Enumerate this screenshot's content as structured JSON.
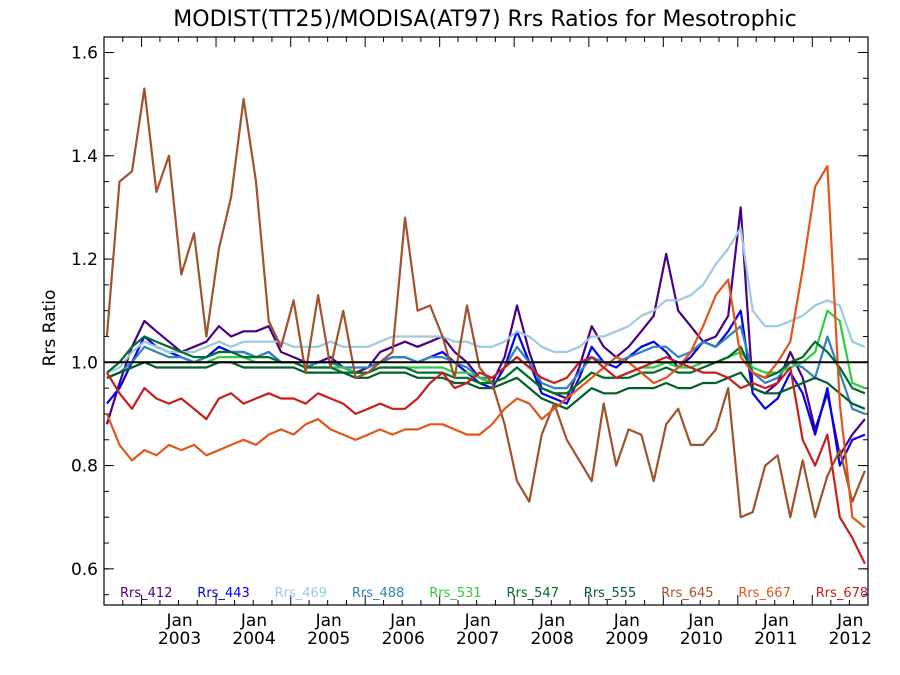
{
  "chart_data": {
    "type": "line",
    "title": "MODIST(TT25)/MODISA(AT97)  Rrs Ratios for Mesotrophic",
    "xlabel": "",
    "ylabel": "Rrs Ratio",
    "ylim": [
      0.53,
      1.63
    ],
    "yticks": [
      0.6,
      0.8,
      1.0,
      1.2,
      1.4,
      1.6
    ],
    "ytick_labels": [
      "0.6",
      "0.8",
      "1.0",
      "1.2",
      "1.4",
      "1.6"
    ],
    "xlim": [
      "2002-07-01",
      "2012-09-30"
    ],
    "xticks": [
      "2003-01-01",
      "2004-01-01",
      "2005-01-01",
      "2006-01-01",
      "2007-01-01",
      "2008-01-01",
      "2009-01-01",
      "2010-01-01",
      "2011-01-01",
      "2012-01-01"
    ],
    "xtick_labels": [
      [
        "Jan",
        "2003"
      ],
      [
        "Jan",
        "2004"
      ],
      [
        "Jan",
        "2005"
      ],
      [
        "Jan",
        "2006"
      ],
      [
        "Jan",
        "2007"
      ],
      [
        "Jan",
        "2008"
      ],
      [
        "Jan",
        "2009"
      ],
      [
        "Jan",
        "2010"
      ],
      [
        "Jan",
        "2011"
      ],
      [
        "Jan",
        "2012"
      ]
    ],
    "reference_line": 1.0,
    "legend_position": "bottom",
    "x": [
      "2002-07-15",
      "2002-09-15",
      "2002-11-15",
      "2003-01-15",
      "2003-03-15",
      "2003-05-15",
      "2003-07-15",
      "2003-09-15",
      "2003-11-15",
      "2004-01-15",
      "2004-03-15",
      "2004-05-15",
      "2004-07-15",
      "2004-09-15",
      "2004-11-15",
      "2005-01-15",
      "2005-03-15",
      "2005-05-15",
      "2005-07-15",
      "2005-09-15",
      "2005-11-15",
      "2006-01-15",
      "2006-03-15",
      "2006-05-15",
      "2006-07-15",
      "2006-09-15",
      "2006-11-15",
      "2007-01-15",
      "2007-03-15",
      "2007-05-15",
      "2007-07-15",
      "2007-09-15",
      "2007-11-15",
      "2008-01-15",
      "2008-03-15",
      "2008-05-15",
      "2008-07-15",
      "2008-09-15",
      "2008-11-15",
      "2009-01-15",
      "2009-03-15",
      "2009-05-15",
      "2009-07-15",
      "2009-09-15",
      "2009-11-15",
      "2010-01-15",
      "2010-03-15",
      "2010-05-15",
      "2010-07-15",
      "2010-09-15",
      "2010-11-15",
      "2011-01-15",
      "2011-03-15",
      "2011-05-15",
      "2011-07-15",
      "2011-09-15",
      "2011-11-15",
      "2012-01-15",
      "2012-03-15",
      "2012-05-15",
      "2012-07-15",
      "2012-09-15"
    ],
    "series": [
      {
        "name": "Rrs_412",
        "color": "#4b0082",
        "values": [
          0.88,
          0.96,
          1.03,
          1.08,
          1.06,
          1.04,
          1.02,
          1.03,
          1.04,
          1.07,
          1.05,
          1.06,
          1.06,
          1.07,
          1.02,
          1.01,
          1.0,
          1.0,
          1.01,
          0.99,
          0.98,
          0.99,
          1.02,
          1.03,
          1.04,
          1.03,
          1.04,
          1.05,
          1.02,
          1.0,
          0.97,
          0.96,
          1.01,
          1.11,
          1.02,
          0.95,
          0.94,
          0.93,
          0.99,
          1.07,
          1.03,
          1.01,
          1.03,
          1.06,
          1.09,
          1.21,
          1.1,
          1.07,
          1.04,
          1.05,
          1.09,
          1.3,
          0.95,
          0.94,
          0.96,
          1.02,
          0.97,
          0.87,
          0.94,
          0.82,
          0.86,
          0.89
        ]
      },
      {
        "name": "Rrs_443",
        "color": "#0000ee",
        "values": [
          0.92,
          0.95,
          1.0,
          1.05,
          1.03,
          1.02,
          1.01,
          1.0,
          1.01,
          1.03,
          1.02,
          1.02,
          1.01,
          1.02,
          1.0,
          1.0,
          0.99,
          1.0,
          1.0,
          0.99,
          0.98,
          0.98,
          1.0,
          1.01,
          1.01,
          1.0,
          1.01,
          1.02,
          1.0,
          0.98,
          0.96,
          0.95,
          0.99,
          1.06,
          1.0,
          0.94,
          0.93,
          0.92,
          0.97,
          1.03,
          1.0,
          0.99,
          1.01,
          1.03,
          1.04,
          1.02,
          0.99,
          1.01,
          1.04,
          1.03,
          1.06,
          1.1,
          0.94,
          0.91,
          0.93,
          0.98,
          0.94,
          0.86,
          0.95,
          0.8,
          0.85,
          0.86
        ]
      },
      {
        "name": "Rrs_469",
        "color": "#9ecae1",
        "values": [
          0.98,
          0.99,
          1.02,
          1.04,
          1.03,
          1.02,
          1.02,
          1.02,
          1.03,
          1.04,
          1.03,
          1.04,
          1.04,
          1.04,
          1.04,
          1.03,
          1.03,
          1.03,
          1.04,
          1.03,
          1.03,
          1.03,
          1.04,
          1.05,
          1.05,
          1.05,
          1.05,
          1.05,
          1.04,
          1.04,
          1.03,
          1.03,
          1.04,
          1.06,
          1.05,
          1.03,
          1.02,
          1.02,
          1.03,
          1.05,
          1.05,
          1.06,
          1.07,
          1.09,
          1.1,
          1.12,
          1.12,
          1.13,
          1.15,
          1.19,
          1.22,
          1.26,
          1.1,
          1.07,
          1.07,
          1.08,
          1.09,
          1.11,
          1.12,
          1.11,
          1.04,
          1.03
        ]
      },
      {
        "name": "Rrs_488",
        "color": "#3182bd",
        "values": [
          0.97,
          0.98,
          1.0,
          1.03,
          1.02,
          1.01,
          1.01,
          1.0,
          1.01,
          1.02,
          1.02,
          1.02,
          1.01,
          1.02,
          1.0,
          1.0,
          0.99,
          1.0,
          1.0,
          0.99,
          0.99,
          0.99,
          1.0,
          1.01,
          1.01,
          1.0,
          1.01,
          1.01,
          1.0,
          0.99,
          0.97,
          0.97,
          0.99,
          1.03,
          1.0,
          0.96,
          0.95,
          0.95,
          0.98,
          1.01,
          1.0,
          1.0,
          1.01,
          1.02,
          1.03,
          1.03,
          1.01,
          1.02,
          1.04,
          1.03,
          1.05,
          1.07,
          0.98,
          0.96,
          0.97,
          1.0,
          0.99,
          0.97,
          1.05,
          0.98,
          0.91,
          0.9
        ]
      },
      {
        "name": "Rrs_531",
        "color": "#2ecc40",
        "values": [
          0.97,
          0.98,
          0.99,
          1.0,
          1.0,
          1.0,
          1.0,
          1.0,
          1.0,
          1.01,
          1.01,
          1.01,
          1.0,
          1.0,
          1.0,
          1.0,
          0.99,
          0.99,
          0.99,
          0.99,
          0.98,
          0.98,
          0.99,
          0.99,
          0.99,
          0.99,
          0.99,
          0.99,
          0.98,
          0.98,
          0.97,
          0.96,
          0.97,
          0.99,
          0.97,
          0.95,
          0.94,
          0.94,
          0.96,
          0.98,
          0.97,
          0.97,
          0.98,
          0.99,
          0.99,
          1.0,
          0.99,
          0.99,
          1.0,
          1.0,
          1.01,
          1.02,
          0.99,
          0.98,
          0.98,
          0.99,
          1.0,
          1.02,
          1.1,
          1.08,
          0.96,
          0.95
        ]
      },
      {
        "name": "Rrs_547",
        "color": "#006d2c",
        "values": [
          0.98,
          1.0,
          1.03,
          1.05,
          1.04,
          1.03,
          1.02,
          1.01,
          1.01,
          1.02,
          1.02,
          1.01,
          1.01,
          1.01,
          1.0,
          1.0,
          0.99,
          0.99,
          0.99,
          0.98,
          0.98,
          0.98,
          0.99,
          0.99,
          0.99,
          0.98,
          0.98,
          0.98,
          0.97,
          0.97,
          0.96,
          0.96,
          0.97,
          0.99,
          0.97,
          0.95,
          0.94,
          0.94,
          0.96,
          0.98,
          0.97,
          0.97,
          0.97,
          0.98,
          0.98,
          0.99,
          0.98,
          0.98,
          0.99,
          1.0,
          1.01,
          1.03,
          0.98,
          0.97,
          0.98,
          1.0,
          1.01,
          1.04,
          1.02,
          0.99,
          0.95,
          0.94
        ]
      },
      {
        "name": "Rrs_555",
        "color": "#00602b",
        "values": [
          0.97,
          0.98,
          0.99,
          1.0,
          0.99,
          0.99,
          0.99,
          0.99,
          0.99,
          1.0,
          1.0,
          0.99,
          0.99,
          0.99,
          0.99,
          0.99,
          0.98,
          0.98,
          0.98,
          0.98,
          0.97,
          0.97,
          0.98,
          0.98,
          0.98,
          0.97,
          0.97,
          0.97,
          0.96,
          0.96,
          0.95,
          0.95,
          0.96,
          0.97,
          0.95,
          0.93,
          0.92,
          0.91,
          0.93,
          0.95,
          0.94,
          0.94,
          0.95,
          0.95,
          0.95,
          0.96,
          0.95,
          0.95,
          0.96,
          0.96,
          0.97,
          0.98,
          0.95,
          0.94,
          0.94,
          0.95,
          0.96,
          0.97,
          0.96,
          0.94,
          0.92,
          0.91
        ]
      },
      {
        "name": "Rrs_645",
        "color": "#a0522d",
        "values": [
          1.05,
          1.35,
          1.37,
          1.53,
          1.33,
          1.4,
          1.17,
          1.25,
          1.05,
          1.22,
          1.32,
          1.51,
          1.35,
          1.08,
          1.03,
          1.12,
          0.98,
          1.13,
          0.99,
          1.1,
          0.97,
          0.98,
          1.0,
          1.02,
          1.28,
          1.1,
          1.11,
          1.05,
          0.97,
          1.11,
          0.99,
          0.96,
          0.88,
          0.77,
          0.73,
          0.86,
          0.92,
          0.85,
          0.81,
          0.77,
          0.92,
          0.8,
          0.87,
          0.86,
          0.77,
          0.88,
          0.91,
          0.84,
          0.84,
          0.87,
          0.95,
          0.7,
          0.71,
          0.8,
          0.82,
          0.7,
          0.81,
          0.7,
          0.78,
          0.83,
          0.73,
          0.79
        ]
      },
      {
        "name": "Rrs_667",
        "color": "#e2561b",
        "values": [
          0.9,
          0.84,
          0.81,
          0.83,
          0.82,
          0.84,
          0.83,
          0.84,
          0.82,
          0.83,
          0.84,
          0.85,
          0.84,
          0.86,
          0.87,
          0.86,
          0.88,
          0.89,
          0.87,
          0.86,
          0.85,
          0.86,
          0.87,
          0.86,
          0.87,
          0.87,
          0.88,
          0.88,
          0.87,
          0.86,
          0.86,
          0.88,
          0.91,
          0.93,
          0.92,
          0.89,
          0.91,
          0.93,
          0.95,
          0.97,
          0.99,
          1.01,
          1.0,
          0.98,
          0.96,
          0.97,
          0.99,
          1.02,
          1.07,
          1.13,
          1.16,
          1.01,
          0.98,
          0.97,
          1.0,
          1.04,
          1.18,
          1.34,
          1.38,
          0.92,
          0.7,
          0.68
        ]
      },
      {
        "name": "Rrs_678",
        "color": "#c81e1e",
        "values": [
          0.98,
          0.94,
          0.91,
          0.95,
          0.93,
          0.92,
          0.93,
          0.91,
          0.89,
          0.93,
          0.94,
          0.92,
          0.93,
          0.94,
          0.93,
          0.93,
          0.92,
          0.94,
          0.93,
          0.92,
          0.9,
          0.91,
          0.92,
          0.91,
          0.91,
          0.93,
          0.96,
          0.98,
          0.95,
          0.96,
          0.98,
          0.97,
          0.99,
          1.01,
          0.99,
          0.97,
          0.96,
          0.97,
          1.0,
          1.01,
          0.99,
          0.97,
          0.98,
          0.99,
          1.0,
          1.01,
          1.0,
          0.99,
          0.98,
          0.98,
          0.97,
          0.95,
          0.96,
          0.95,
          0.96,
          0.99,
          0.85,
          0.8,
          0.86,
          0.7,
          0.66,
          0.61
        ]
      }
    ]
  }
}
